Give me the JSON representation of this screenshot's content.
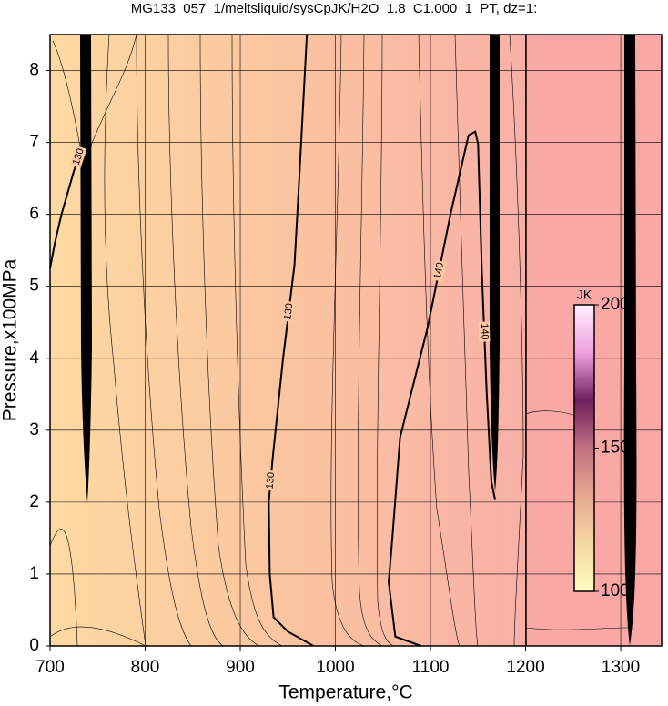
{
  "chart_data": {
    "type": "contour",
    "title": "MG133_057_1/meltsliquid/sysCpJK/H2O_1.8_C1.000_1_PT, dz=1:",
    "x_label": "Temperature,°C",
    "y_label": "Pressure,x100MPa",
    "xlim": [
      700,
      1343
    ],
    "ylim": [
      0,
      8.5
    ],
    "xticks": [
      700,
      800,
      900,
      1000,
      1100,
      1200,
      1300
    ],
    "yticks": [
      0,
      1,
      2,
      3,
      4,
      5,
      6,
      7,
      8
    ],
    "grid": true,
    "contours": [
      {
        "level": 130,
        "x": [
          970,
          962,
          957,
          945,
          934,
          930,
          931,
          935,
          950,
          977
        ],
        "y": [
          8.5,
          6.5,
          5.3,
          4,
          2.6,
          2,
          1,
          0.4,
          0.2,
          0
        ]
      },
      {
        "level": 140,
        "x": [
          1090,
          1063,
          1056,
          1060,
          1068,
          1097,
          1121,
          1140,
          1147,
          1150,
          1154,
          1159,
          1164,
          1168
        ],
        "y": [
          0,
          0.13,
          0.89,
          1.52,
          2.9,
          4.43,
          6.0,
          7.1,
          7.15,
          6.98,
          5.2,
          3.54,
          2.28,
          2.03
        ]
      },
      {
        "level": 130,
        "x": [
          700,
          705,
          712,
          725,
          735
        ],
        "y": [
          5.25,
          5.6,
          6.0,
          6.6,
          7.0
        ]
      }
    ],
    "colorbar": {
      "label": "JK",
      "lim": [
        100,
        200
      ],
      "ticks": [
        100,
        150,
        200
      ],
      "colors": [
        "#fffcc0",
        "#f5d8a0",
        "#e8a890",
        "#c07080",
        "#702060",
        "#f0a0e0",
        "#fff0ff"
      ]
    }
  }
}
